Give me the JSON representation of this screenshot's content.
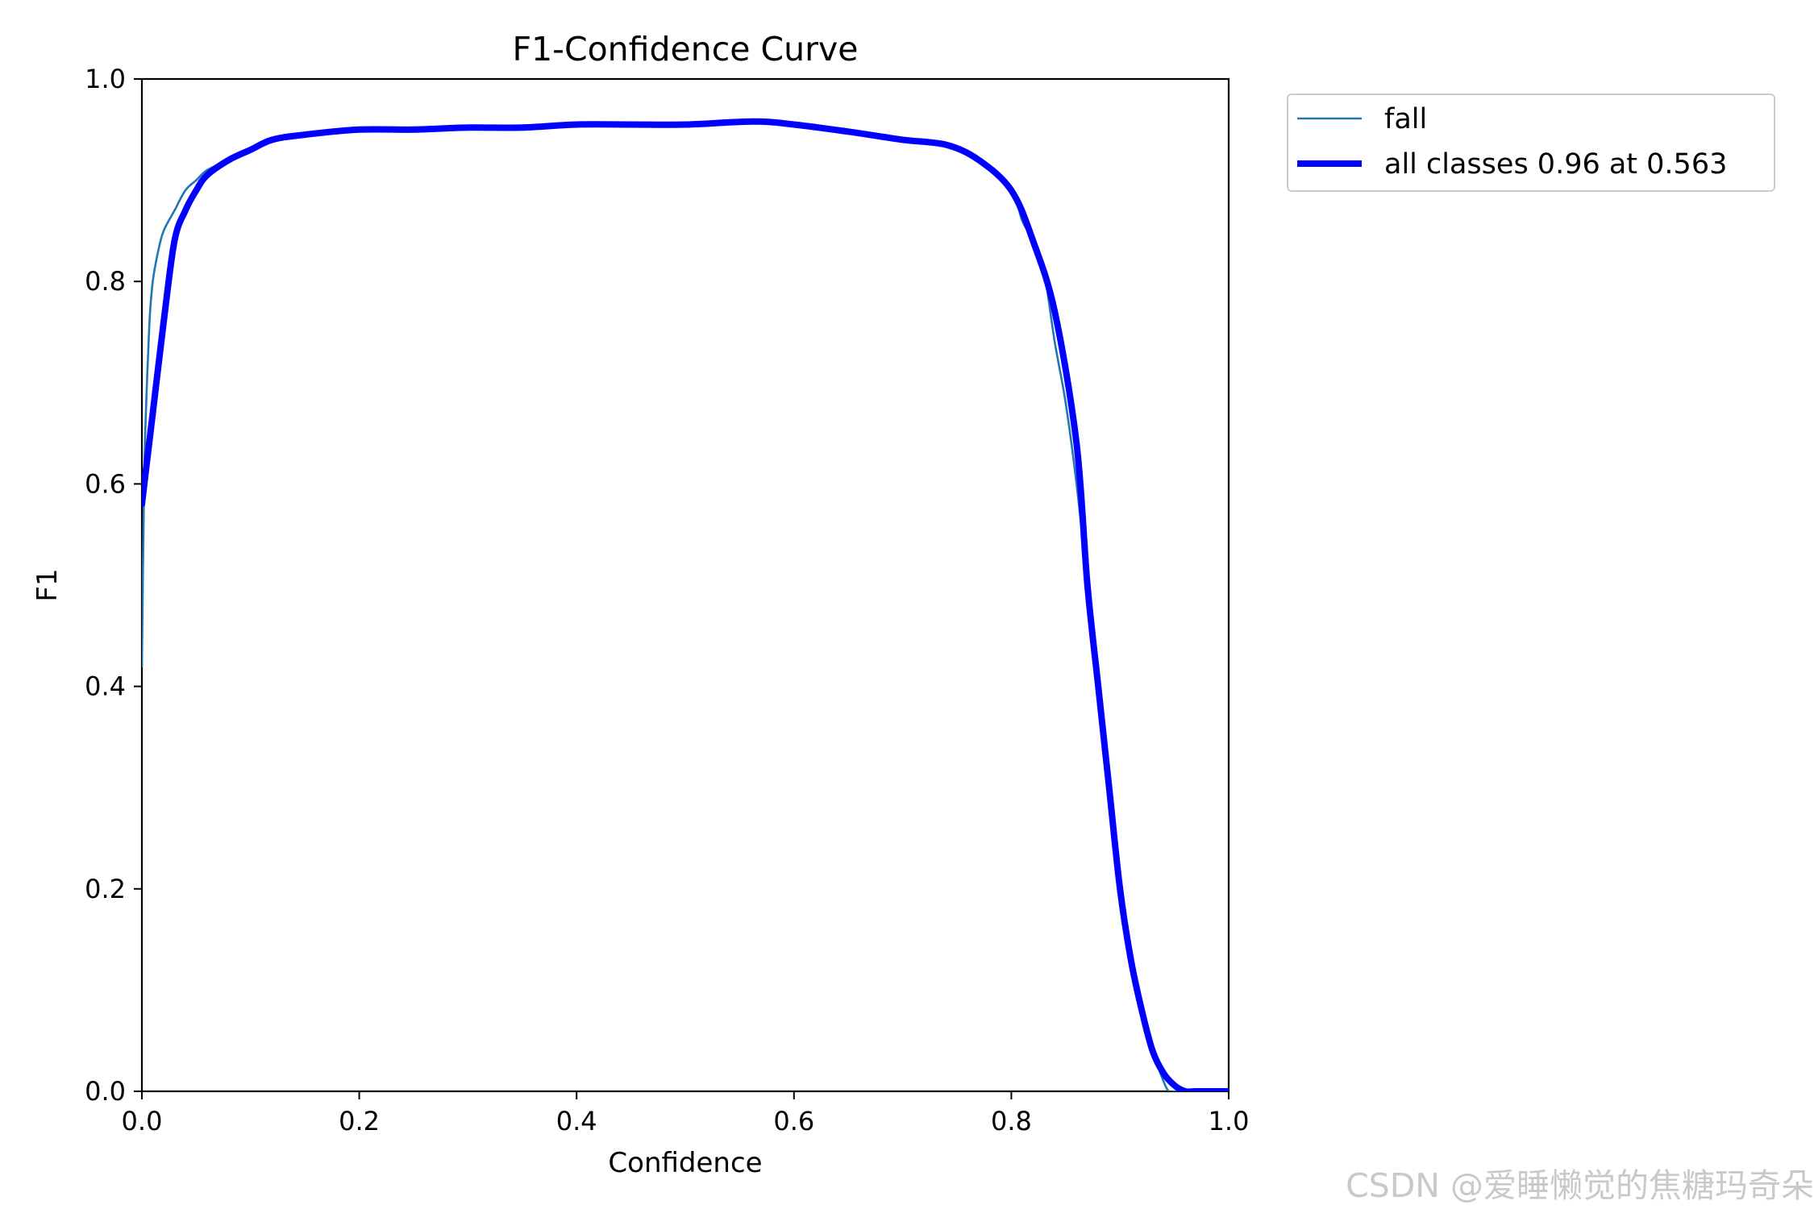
{
  "chart_data": {
    "type": "line",
    "title": "F1-Confidence Curve",
    "xlabel": "Confidence",
    "ylabel": "F1",
    "xlim": [
      0,
      1
    ],
    "ylim": [
      0,
      1
    ],
    "xticks": [
      "0.0",
      "0.2",
      "0.4",
      "0.6",
      "0.8",
      "1.0"
    ],
    "yticks": [
      "0.0",
      "0.2",
      "0.4",
      "0.6",
      "0.8",
      "1.0"
    ],
    "grid": false,
    "legend_position": "outside-upper-right",
    "series": [
      {
        "name": "fall",
        "color": "#1f77b4",
        "style": "thin",
        "x": [
          0.0,
          0.002,
          0.004,
          0.007,
          0.01,
          0.015,
          0.02,
          0.03,
          0.04,
          0.05,
          0.06,
          0.08,
          0.1,
          0.12,
          0.15,
          0.2,
          0.25,
          0.3,
          0.35,
          0.4,
          0.45,
          0.5,
          0.563,
          0.6,
          0.65,
          0.7,
          0.74,
          0.77,
          0.8,
          0.81,
          0.82,
          0.83,
          0.84,
          0.85,
          0.86,
          0.87,
          0.88,
          0.89,
          0.9,
          0.91,
          0.915,
          0.92,
          0.93,
          0.94,
          0.945,
          0.95,
          0.96,
          1.0
        ],
        "y": [
          0.42,
          0.6,
          0.68,
          0.76,
          0.8,
          0.83,
          0.85,
          0.87,
          0.89,
          0.9,
          0.91,
          0.92,
          0.93,
          0.94,
          0.945,
          0.95,
          0.95,
          0.952,
          0.952,
          0.955,
          0.955,
          0.955,
          0.958,
          0.955,
          0.948,
          0.94,
          0.935,
          0.92,
          0.89,
          0.86,
          0.84,
          0.81,
          0.74,
          0.68,
          0.6,
          0.5,
          0.4,
          0.3,
          0.2,
          0.14,
          0.1,
          0.08,
          0.04,
          0.01,
          0.0,
          0.0,
          0.0,
          0.0
        ]
      },
      {
        "name": "all classes 0.96 at 0.563",
        "color": "#0000ff",
        "style": "thick",
        "x": [
          0.0,
          0.01,
          0.02,
          0.03,
          0.04,
          0.05,
          0.06,
          0.08,
          0.1,
          0.12,
          0.15,
          0.2,
          0.25,
          0.3,
          0.35,
          0.4,
          0.45,
          0.5,
          0.563,
          0.6,
          0.65,
          0.7,
          0.74,
          0.77,
          0.8,
          0.82,
          0.84,
          0.86,
          0.87,
          0.88,
          0.89,
          0.9,
          0.91,
          0.92,
          0.93,
          0.94,
          0.95,
          0.96,
          0.97,
          1.0
        ],
        "y": [
          0.58,
          0.67,
          0.76,
          0.84,
          0.87,
          0.89,
          0.905,
          0.92,
          0.93,
          0.94,
          0.945,
          0.95,
          0.95,
          0.952,
          0.952,
          0.955,
          0.955,
          0.955,
          0.958,
          0.955,
          0.948,
          0.94,
          0.935,
          0.92,
          0.89,
          0.84,
          0.77,
          0.64,
          0.5,
          0.4,
          0.3,
          0.2,
          0.13,
          0.08,
          0.04,
          0.018,
          0.006,
          0.0,
          0.0,
          0.0
        ]
      }
    ]
  },
  "watermark": "CSDN @爱睡懒觉的焦糖玛奇朵"
}
